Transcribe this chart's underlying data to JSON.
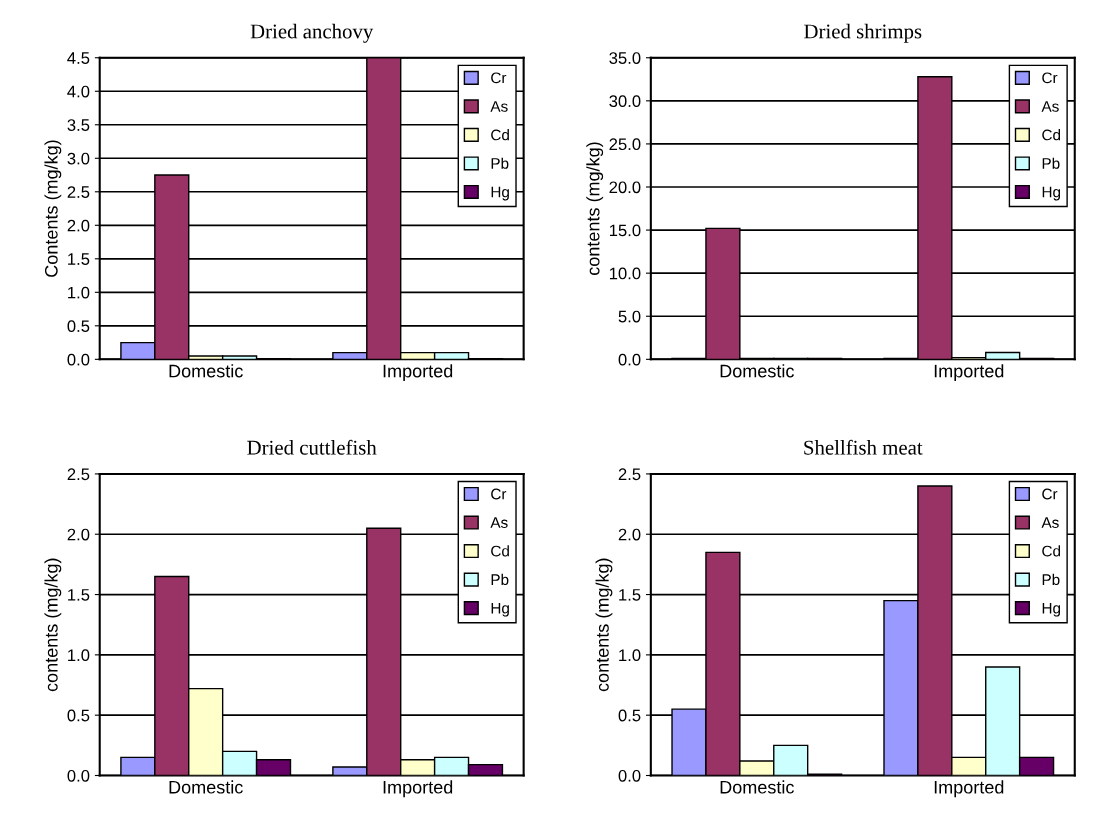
{
  "chart_data": [
    {
      "type": "bar",
      "title": "Dried anchovy",
      "ylabel": "Contents (mg/kg)",
      "categories": [
        "Domestic",
        "Imported"
      ],
      "ylim": [
        0,
        4.5
      ],
      "yticks": [
        {
          "value": 0,
          "label": "0.0"
        },
        {
          "value": 0.5,
          "label": "0.5"
        },
        {
          "value": 1,
          "label": "1.0"
        },
        {
          "value": 1.5,
          "label": "1.5"
        },
        {
          "value": 2,
          "label": "2.0"
        },
        {
          "value": 2.5,
          "label": "2.5"
        },
        {
          "value": 3,
          "label": "3.0"
        },
        {
          "value": 3.5,
          "label": "3.5"
        },
        {
          "value": 4,
          "label": "4.0"
        },
        {
          "value": 4.5,
          "label": "4.5"
        }
      ],
      "grid": "y",
      "legend": "top right",
      "series": [
        {
          "name": "Cr",
          "color": "#9999ff",
          "values": [
            0.25,
            0.1
          ]
        },
        {
          "name": "As",
          "color": "#993366",
          "values": [
            2.75,
            4.5
          ]
        },
        {
          "name": "Cd",
          "color": "#ffffcc",
          "values": [
            0.05,
            0.1
          ]
        },
        {
          "name": "Pb",
          "color": "#ccffff",
          "values": [
            0.05,
            0.1
          ]
        },
        {
          "name": "Hg",
          "color": "#660066",
          "values": [
            0.01,
            0.01
          ]
        }
      ]
    },
    {
      "type": "bar",
      "title": "Dried shrimps",
      "ylabel": "contents (mg/kg)",
      "categories": [
        "Domestic",
        "Imported"
      ],
      "ylim": [
        0,
        35
      ],
      "yticks": [
        {
          "value": 0,
          "label": "0.0"
        },
        {
          "value": 5,
          "label": "5.0"
        },
        {
          "value": 10,
          "label": "10.0"
        },
        {
          "value": 15,
          "label": "15.0"
        },
        {
          "value": 20,
          "label": "20.0"
        },
        {
          "value": 25,
          "label": "25.0"
        },
        {
          "value": 30,
          "label": "30.0"
        },
        {
          "value": 35,
          "label": "35.0"
        }
      ],
      "grid": "y",
      "legend": "top right",
      "series": [
        {
          "name": "Cr",
          "color": "#9999ff",
          "values": [
            0.1,
            0.1
          ]
        },
        {
          "name": "As",
          "color": "#993366",
          "values": [
            15.2,
            32.8
          ]
        },
        {
          "name": "Cd",
          "color": "#ffffcc",
          "values": [
            0.1,
            0.2
          ]
        },
        {
          "name": "Pb",
          "color": "#ccffff",
          "values": [
            0.1,
            0.8
          ]
        },
        {
          "name": "Hg",
          "color": "#660066",
          "values": [
            0.1,
            0.1
          ]
        }
      ]
    },
    {
      "type": "bar",
      "title": "Dried cuttlefish",
      "ylabel": "contents (mg/kg)",
      "categories": [
        "Domestic",
        "Imported"
      ],
      "ylim": [
        0,
        2.5
      ],
      "yticks": [
        {
          "value": 0,
          "label": "0.0"
        },
        {
          "value": 0.5,
          "label": "0.5"
        },
        {
          "value": 1,
          "label": "1.0"
        },
        {
          "value": 1.5,
          "label": "1.5"
        },
        {
          "value": 2,
          "label": "2.0"
        },
        {
          "value": 2.5,
          "label": "2.5"
        }
      ],
      "grid": "y",
      "legend": "top right",
      "series": [
        {
          "name": "Cr",
          "color": "#9999ff",
          "values": [
            0.15,
            0.07
          ]
        },
        {
          "name": "As",
          "color": "#993366",
          "values": [
            1.65,
            2.05
          ]
        },
        {
          "name": "Cd",
          "color": "#ffffcc",
          "values": [
            0.72,
            0.13
          ]
        },
        {
          "name": "Pb",
          "color": "#ccffff",
          "values": [
            0.2,
            0.15
          ]
        },
        {
          "name": "Hg",
          "color": "#660066",
          "values": [
            0.13,
            0.09
          ]
        }
      ]
    },
    {
      "type": "bar",
      "title": "Shellfish meat",
      "ylabel": "contents (mg/kg)",
      "categories": [
        "Domestic",
        "Imported"
      ],
      "ylim": [
        0,
        2.5
      ],
      "yticks": [
        {
          "value": 0,
          "label": "0.0"
        },
        {
          "value": 0.5,
          "label": "0.5"
        },
        {
          "value": 1,
          "label": "1.0"
        },
        {
          "value": 1.5,
          "label": "1.5"
        },
        {
          "value": 2,
          "label": "2.0"
        },
        {
          "value": 2.5,
          "label": "2.5"
        }
      ],
      "grid": "y",
      "legend": "top right",
      "series": [
        {
          "name": "Cr",
          "color": "#9999ff",
          "values": [
            0.55,
            1.45
          ]
        },
        {
          "name": "As",
          "color": "#993366",
          "values": [
            1.85,
            2.4
          ]
        },
        {
          "name": "Cd",
          "color": "#ffffcc",
          "values": [
            0.12,
            0.15
          ]
        },
        {
          "name": "Pb",
          "color": "#ccffff",
          "values": [
            0.25,
            0.9
          ]
        },
        {
          "name": "Hg",
          "color": "#660066",
          "values": [
            0.01,
            0.15
          ]
        }
      ]
    }
  ]
}
